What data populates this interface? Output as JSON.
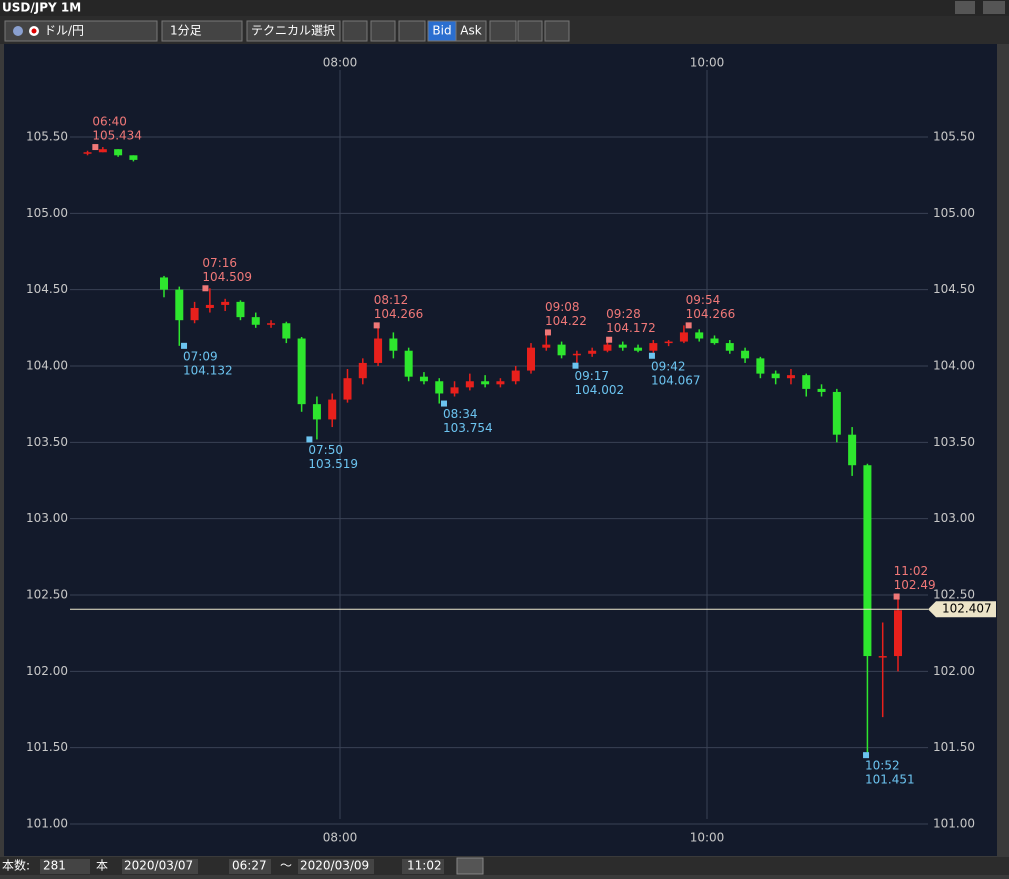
{
  "window": {
    "title": "USD/JPY 1M"
  },
  "toolbar": {
    "pair": "ドル/円",
    "timeframe": "1分足",
    "technical": "テクニカル選択",
    "bid": "Bid",
    "ask": "Ask"
  },
  "footer": {
    "count_label": "本数:",
    "count": "281",
    "count_unit": "本",
    "from_date": "2020/03/07",
    "from_time": "06:27",
    "separator": "〜",
    "to_date": "2020/03/09",
    "to_time": "11:02"
  },
  "chart_data": {
    "type": "candlestick",
    "up_color": "#e8201c",
    "down_color": "#2ee62e",
    "x": [
      "06:35",
      "06:40",
      "06:45",
      "06:50",
      "07:00",
      "07:05",
      "07:10",
      "07:15",
      "07:20",
      "07:25",
      "07:30",
      "07:35",
      "07:40",
      "07:45",
      "07:50",
      "07:55",
      "08:00",
      "08:05",
      "08:10",
      "08:15",
      "08:20",
      "08:25",
      "08:30",
      "08:35",
      "08:40",
      "08:45",
      "08:50",
      "08:55",
      "09:00",
      "09:05",
      "09:10",
      "09:15",
      "09:20",
      "09:25",
      "09:30",
      "09:35",
      "09:40",
      "09:45",
      "09:50",
      "09:55",
      "10:00",
      "10:05",
      "10:10",
      "10:15",
      "10:20",
      "10:25",
      "10:30",
      "10:35",
      "10:40",
      "10:45",
      "10:50",
      "10:55",
      "11:00"
    ],
    "open": [
      105.4,
      105.4,
      105.42,
      105.38,
      104.58,
      104.5,
      104.3,
      104.38,
      104.4,
      104.42,
      104.32,
      104.27,
      104.28,
      104.18,
      103.75,
      103.65,
      103.78,
      103.92,
      104.02,
      104.18,
      104.1,
      103.93,
      103.9,
      103.82,
      103.86,
      103.9,
      103.88,
      103.9,
      103.97,
      104.12,
      104.14,
      104.07,
      104.08,
      104.1,
      104.14,
      104.12,
      104.1,
      104.15,
      104.16,
      104.22,
      104.18,
      104.15,
      104.1,
      104.05,
      103.95,
      103.92,
      103.94,
      103.85,
      103.83,
      103.55,
      103.35,
      102.1,
      102.1
    ],
    "high": [
      105.41,
      105.434,
      105.42,
      105.38,
      104.59,
      104.52,
      104.42,
      104.509,
      104.44,
      104.43,
      104.35,
      104.3,
      104.29,
      104.19,
      103.8,
      103.82,
      103.98,
      104.05,
      104.266,
      104.22,
      104.12,
      103.96,
      103.92,
      103.9,
      103.95,
      103.94,
      103.92,
      104.0,
      104.15,
      104.22,
      104.16,
      104.1,
      104.12,
      104.172,
      104.16,
      104.14,
      104.17,
      104.17,
      104.266,
      104.24,
      104.2,
      104.17,
      104.12,
      104.06,
      103.97,
      103.98,
      103.95,
      103.88,
      103.85,
      103.6,
      103.36,
      102.32,
      102.49
    ],
    "low": [
      105.38,
      105.4,
      105.37,
      105.34,
      104.45,
      104.132,
      104.28,
      104.35,
      104.36,
      104.3,
      104.25,
      104.25,
      104.15,
      103.7,
      103.519,
      103.6,
      103.76,
      103.88,
      104.0,
      104.05,
      103.9,
      103.88,
      103.754,
      103.8,
      103.84,
      103.86,
      103.86,
      103.88,
      103.95,
      104.1,
      104.05,
      104.002,
      104.06,
      104.09,
      104.1,
      104.09,
      104.067,
      104.13,
      104.15,
      104.16,
      104.14,
      104.08,
      104.02,
      103.92,
      103.88,
      103.88,
      103.8,
      103.8,
      103.5,
      103.28,
      101.451,
      101.7,
      102.0
    ],
    "close": [
      105.4,
      105.42,
      105.38,
      105.35,
      104.5,
      104.3,
      104.38,
      104.4,
      104.42,
      104.32,
      104.27,
      104.28,
      104.18,
      103.75,
      103.65,
      103.78,
      103.92,
      104.02,
      104.18,
      104.1,
      103.93,
      103.9,
      103.82,
      103.86,
      103.9,
      103.88,
      103.9,
      103.97,
      104.12,
      104.14,
      104.07,
      104.08,
      104.1,
      104.14,
      104.12,
      104.1,
      104.15,
      104.16,
      104.22,
      104.18,
      104.15,
      104.1,
      104.05,
      103.95,
      103.92,
      103.94,
      103.85,
      103.83,
      103.55,
      103.35,
      102.1,
      102.1,
      102.4
    ],
    "xticks": [
      "08:00",
      "10:00"
    ],
    "ylim": [
      101.0,
      105.85
    ],
    "yticks": [
      {
        "value": 101.0,
        "label": "101.00"
      },
      {
        "value": 101.5,
        "label": "101.50"
      },
      {
        "value": 102.0,
        "label": "102.00"
      },
      {
        "value": 102.5,
        "label": "102.50"
      },
      {
        "value": 103.0,
        "label": "103.00"
      },
      {
        "value": 103.5,
        "label": "103.50"
      },
      {
        "value": 104.0,
        "label": "104.00"
      },
      {
        "value": 104.5,
        "label": "104.50"
      },
      {
        "value": 105.0,
        "label": "105.00"
      },
      {
        "value": 105.5,
        "label": "105.50"
      }
    ],
    "highs": [
      {
        "time": "06:40",
        "value": 105.434
      },
      {
        "time": "07:16",
        "value": 104.509
      },
      {
        "time": "08:12",
        "value": 104.266
      },
      {
        "time": "09:08",
        "value": 104.22
      },
      {
        "time": "09:28",
        "value": 104.172
      },
      {
        "time": "09:54",
        "value": 104.266
      },
      {
        "time": "11:02",
        "value": 102.49
      }
    ],
    "lows": [
      {
        "time": "07:09",
        "value": 104.132
      },
      {
        "time": "07:50",
        "value": 103.519
      },
      {
        "time": "08:34",
        "value": 103.754
      },
      {
        "time": "09:17",
        "value": 104.002
      },
      {
        "time": "09:42",
        "value": 104.067
      },
      {
        "time": "10:52",
        "value": 101.451
      }
    ],
    "last_price": 102.407,
    "grid": true
  }
}
